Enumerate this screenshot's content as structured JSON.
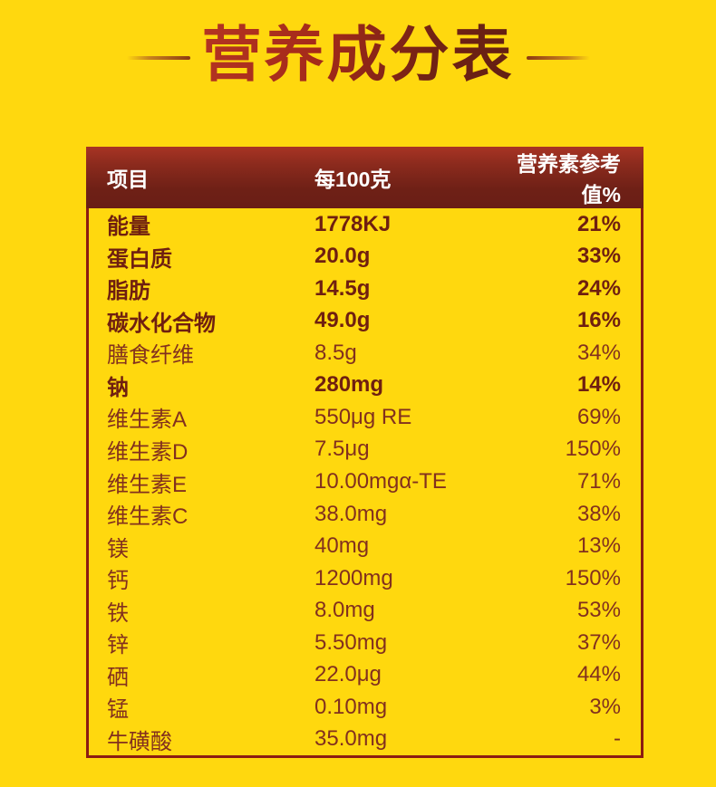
{
  "title": {
    "text": "营养成分表"
  },
  "colors": {
    "page_background": "#ffd80e",
    "title_red_start": "#b43422",
    "title_red_end": "#632013",
    "header_background_top": "#a83424",
    "header_background_bottom": "#6a1e15",
    "header_text": "#ffffff",
    "row_text_bold": "#6f1f10",
    "row_text_light": "#82301e",
    "table_border": "#8b1c12"
  },
  "table": {
    "header": {
      "item": "项目",
      "per100g": "每100克",
      "nrv": "营养素参考值%"
    },
    "rows": [
      {
        "label": "能量",
        "value": "1778KJ",
        "nrv": "21%",
        "bold": true
      },
      {
        "label": "蛋白质",
        "value": "20.0g",
        "nrv": "33%",
        "bold": true
      },
      {
        "label": "脂肪",
        "value": "14.5g",
        "nrv": "24%",
        "bold": true
      },
      {
        "label": "碳水化合物",
        "value": "49.0g",
        "nrv": "16%",
        "bold": true
      },
      {
        "label": "膳食纤维",
        "value": "8.5g",
        "nrv": "34%",
        "bold": false
      },
      {
        "label": "钠",
        "value": "280mg",
        "nrv": "14%",
        "bold": true
      },
      {
        "label": "维生素A",
        "value": "550μg RE",
        "nrv": "69%",
        "bold": false
      },
      {
        "label": "维生素D",
        "value": "7.5μg",
        "nrv": "150%",
        "bold": false
      },
      {
        "label": "维生素E",
        "value": "10.00mgα-TE",
        "nrv": "71%",
        "bold": false
      },
      {
        "label": "维生素C",
        "value": "38.0mg",
        "nrv": "38%",
        "bold": false
      },
      {
        "label": "镁",
        "value": "40mg",
        "nrv": "13%",
        "bold": false
      },
      {
        "label": "钙",
        "value": "1200mg",
        "nrv": "150%",
        "bold": false
      },
      {
        "label": "铁",
        "value": "8.0mg",
        "nrv": "53%",
        "bold": false
      },
      {
        "label": "锌",
        "value": "5.50mg",
        "nrv": "37%",
        "bold": false
      },
      {
        "label": "硒",
        "value": "22.0μg",
        "nrv": "44%",
        "bold": false
      },
      {
        "label": "锰",
        "value": "0.10mg",
        "nrv": "3%",
        "bold": false
      },
      {
        "label": "牛磺酸",
        "value": "35.0mg",
        "nrv": "-",
        "bold": false
      }
    ]
  }
}
